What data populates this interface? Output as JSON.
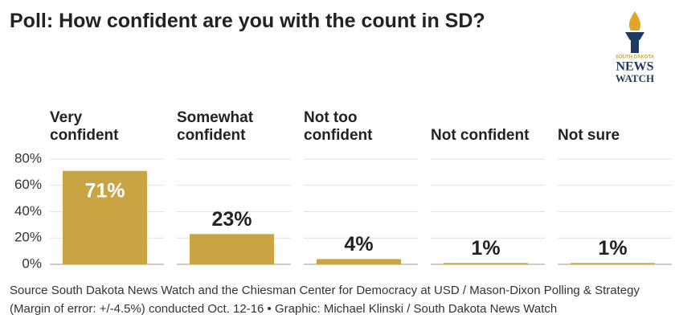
{
  "chart_data": {
    "type": "bar",
    "title": "Poll: How confident are you with the count in SD?",
    "categories": [
      "Very\nconfident",
      "Somewhat\nconfident",
      "Not too\nconfident",
      "Not confident",
      "Not sure"
    ],
    "values": [
      71,
      23,
      4,
      1,
      1
    ],
    "value_labels": [
      "71%",
      "23%",
      "4%",
      "1%",
      "1%"
    ],
    "color": "#c9a443",
    "ylim": [
      0,
      80
    ],
    "yticks": [
      {
        "value": 0,
        "label": "0%"
      },
      {
        "value": 20,
        "label": "20%"
      },
      {
        "value": 40,
        "label": "40%"
      },
      {
        "value": 60,
        "label": "60%"
      },
      {
        "value": 80,
        "label": "80%"
      }
    ],
    "grid": true,
    "source": "Source South Dakota News Watch and the Chiesman Center for Democracy at USD / Mason-Dixon Polling & Strategy (Margin of error: +/-4.5%) conducted Oct. 12-16 • Graphic: Michael Klinski / South Dakota News Watch"
  },
  "logo": {
    "line1": "SOUTH DAKOTA",
    "line2": "NEWS",
    "line3": "WATCH"
  }
}
